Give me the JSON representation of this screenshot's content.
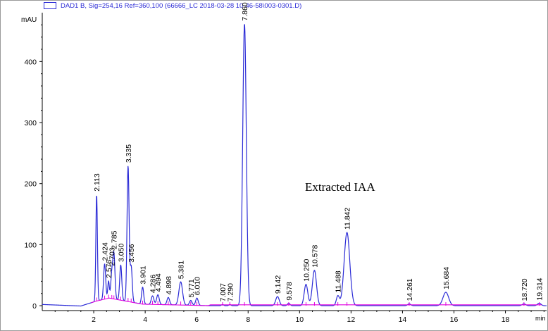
{
  "chart_data": {
    "type": "line",
    "legend_label": "DAD1 B, Sig=254,16 Ref=360,100 (66666_LC 2018-03-28 10-46-58\\003-0301.D)",
    "ylabel": "mAU",
    "xlabel": "min",
    "xlim": [
      0,
      19.6
    ],
    "ylim": [
      -8,
      480
    ],
    "x_ticks": [
      2,
      4,
      6,
      8,
      10,
      12,
      14,
      16,
      18
    ],
    "y_ticks": [
      0,
      100,
      200,
      300,
      400
    ],
    "annotation": "Extracted IAA",
    "colors": {
      "signal": "#2b2bd6",
      "baseline": "#e000e0",
      "axis": "#000000"
    },
    "peaks": [
      {
        "rt": 2.113,
        "label": "2.113",
        "height": 175,
        "width": 0.03
      },
      {
        "rt": 2.424,
        "label": "2.424",
        "height": 58,
        "width": 0.04
      },
      {
        "rt": 2.576,
        "label": "2.576",
        "height": 28,
        "width": 0.03
      },
      {
        "rt": 2.703,
        "label": "2.703",
        "height": 40,
        "width": 0.04
      },
      {
        "rt": 2.785,
        "label": "2.785",
        "height": 72,
        "width": 0.04
      },
      {
        "rt": 3.05,
        "label": "3.050",
        "height": 58,
        "width": 0.04
      },
      {
        "rt": 3.335,
        "label": "3.335",
        "height": 222,
        "width": 0.04
      },
      {
        "rt": 3.456,
        "label": "3.456",
        "height": 58,
        "width": 0.04
      },
      {
        "rt": 3.901,
        "label": "3.901",
        "height": 28,
        "width": 0.04
      },
      {
        "rt": 4.286,
        "label": "4.286",
        "height": 14,
        "width": 0.05
      },
      {
        "rt": 4.494,
        "label": "4.494",
        "height": 16,
        "width": 0.05
      },
      {
        "rt": 4.898,
        "label": "4.898",
        "height": 12,
        "width": 0.05
      },
      {
        "rt": 5.381,
        "label": "5.381",
        "height": 38,
        "width": 0.07
      },
      {
        "rt": 5.771,
        "label": "5.771",
        "height": 8,
        "width": 0.05
      },
      {
        "rt": 6.01,
        "label": "6.010",
        "height": 12,
        "width": 0.05
      },
      {
        "rt": 7.007,
        "label": "7.007",
        "height": 2,
        "width": 0.04
      },
      {
        "rt": 7.29,
        "label": "7.290",
        "height": 2,
        "width": 0.04
      },
      {
        "rt": 7.86,
        "label": "7.860",
        "height": 462,
        "width": 0.07
      },
      {
        "rt": 9.142,
        "label": "9.142",
        "height": 15,
        "width": 0.07
      },
      {
        "rt": 9.578,
        "label": "9.578",
        "height": 4,
        "width": 0.05
      },
      {
        "rt": 10.25,
        "label": "10.250",
        "height": 35,
        "width": 0.07
      },
      {
        "rt": 10.578,
        "label": "10.578",
        "height": 58,
        "width": 0.08
      },
      {
        "rt": 11.488,
        "label": "11.488",
        "height": 16,
        "width": 0.06
      },
      {
        "rt": 11.842,
        "label": "11.842",
        "height": 120,
        "width": 0.11
      },
      {
        "rt": 14.261,
        "label": "14.261",
        "height": 3,
        "width": 0.06
      },
      {
        "rt": 15.684,
        "label": "15.684",
        "height": 22,
        "width": 0.11
      },
      {
        "rt": 18.72,
        "label": "18.720",
        "height": 3,
        "width": 0.07
      },
      {
        "rt": 19.314,
        "label": "19.314",
        "height": 4,
        "width": 0.07
      }
    ]
  }
}
